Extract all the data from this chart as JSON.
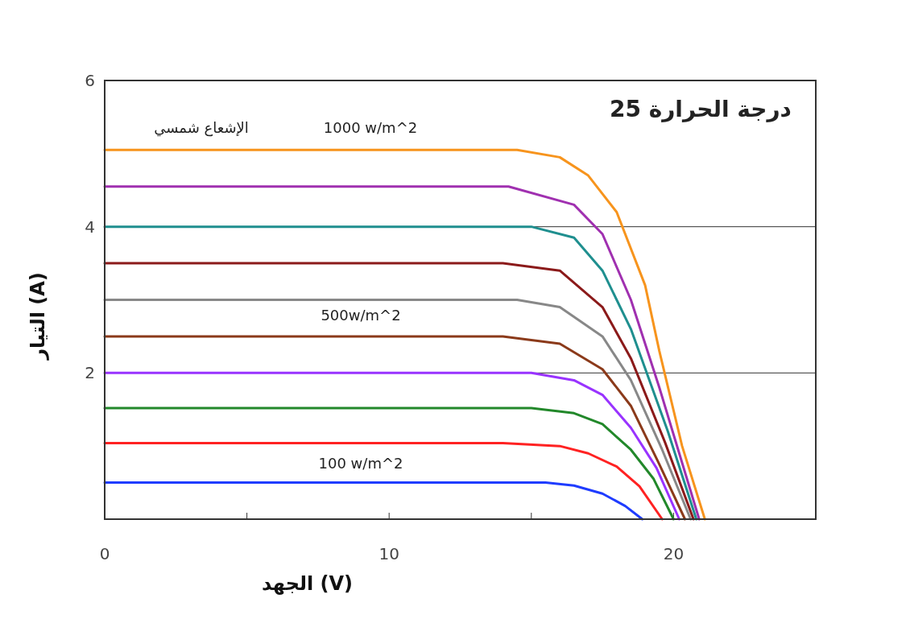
{
  "chart_data": {
    "type": "line",
    "xlabel": "الجهد (V)",
    "ylabel": "التيار (A)",
    "xlim": [
      0,
      25
    ],
    "ylim": [
      0,
      6
    ],
    "xticks": [
      0,
      {
        "value": 5,
        "label": null
      },
      10,
      {
        "value": 15,
        "label": null
      },
      20,
      {
        "value": 25,
        "label": null
      }
    ],
    "yticks": [
      2,
      4,
      6
    ],
    "grid": "y",
    "line_style": "solid",
    "annotations": [
      "الإشعاع شمسي",
      "1000 w/m^2",
      "500w/m^2",
      "100 w/m^2",
      "درجة الحرارة 25"
    ],
    "series": [
      {
        "color": "#1f3cff",
        "x": [
          0,
          15.5,
          16.5,
          17.5,
          18.3,
          18.9
        ],
        "values": [
          0.5,
          0.5,
          0.46,
          0.35,
          0.18,
          0
        ]
      },
      {
        "color": "#ff2222",
        "x": [
          0,
          14,
          16,
          17,
          18,
          18.8,
          19.6
        ],
        "values": [
          1.04,
          1.04,
          1,
          0.9,
          0.72,
          0.45,
          0
        ]
      },
      {
        "color": "#22882a",
        "x": [
          0,
          15,
          16.5,
          17.5,
          18.5,
          19.3,
          20
        ],
        "values": [
          1.52,
          1.52,
          1.45,
          1.3,
          0.95,
          0.55,
          0
        ]
      },
      {
        "color": "#9933ff",
        "x": [
          0,
          15,
          16.5,
          17.5,
          18.5,
          19.4,
          20.2
        ],
        "values": [
          2,
          2,
          1.9,
          1.7,
          1.25,
          0.7,
          0
        ]
      },
      {
        "color": "#8b3a1a",
        "x": [
          0,
          14,
          16,
          17.5,
          18.5,
          19.5,
          20.4
        ],
        "values": [
          2.5,
          2.5,
          2.4,
          2.05,
          1.55,
          0.75,
          0
        ]
      },
      {
        "color": "#888888",
        "x": [
          0,
          14.5,
          16,
          17.5,
          18.5,
          19.6,
          20.6
        ],
        "values": [
          3,
          3,
          2.9,
          2.5,
          1.9,
          0.95,
          0
        ]
      },
      {
        "color": "#8b1a1a",
        "x": [
          0,
          14,
          16,
          17.5,
          18.5,
          19.7,
          20.7
        ],
        "values": [
          3.5,
          3.5,
          3.4,
          2.9,
          2.2,
          1.05,
          0
        ]
      },
      {
        "color": "#1f8f8f",
        "x": [
          0,
          15,
          16.5,
          17.5,
          18.5,
          19.8,
          20.8
        ],
        "values": [
          4,
          4,
          3.85,
          3.4,
          2.6,
          1.2,
          0
        ]
      },
      {
        "color": "#a030b0",
        "x": [
          0,
          14.2,
          16.5,
          17.5,
          18.5,
          19.5,
          20.9
        ],
        "values": [
          4.55,
          4.55,
          4.3,
          3.9,
          3,
          1.8,
          0
        ]
      },
      {
        "color": "#f7941d",
        "x": [
          0,
          14.5,
          16,
          17,
          18,
          19,
          19.5,
          20.3,
          21.1
        ],
        "values": [
          5.05,
          5.05,
          4.95,
          4.7,
          4.2,
          3.2,
          2.3,
          1,
          0
        ]
      }
    ]
  }
}
